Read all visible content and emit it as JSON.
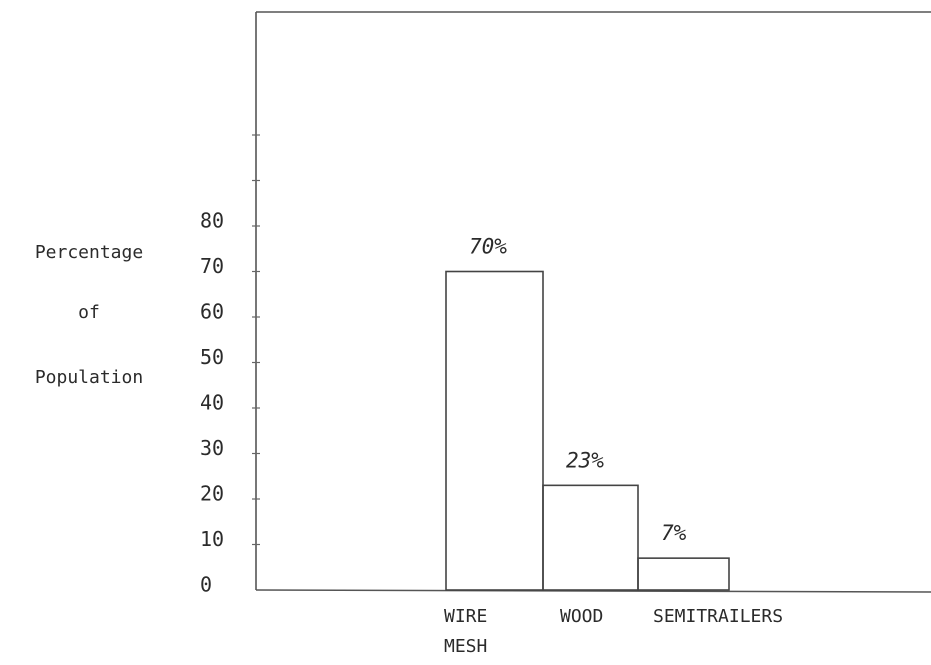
{
  "chart_data": {
    "type": "bar",
    "title": "",
    "ylabel_lines": [
      "Percentage",
      "of",
      "Population"
    ],
    "xlabel": "",
    "yticks": [
      0,
      10,
      20,
      30,
      40,
      50,
      60,
      70,
      80
    ],
    "ylim": [
      0,
      100
    ],
    "categories": [
      {
        "lines": [
          "WIRE",
          "MESH"
        ]
      },
      {
        "lines": [
          "WOOD"
        ]
      },
      {
        "lines": [
          "SEMITRAILERS"
        ]
      }
    ],
    "values": [
      70,
      23,
      7
    ],
    "data_labels": [
      "70%",
      "23%",
      "7%"
    ],
    "grid": false,
    "legend": "none",
    "colors": {
      "ink": "#2b2b2b",
      "axis": "#555555"
    }
  }
}
